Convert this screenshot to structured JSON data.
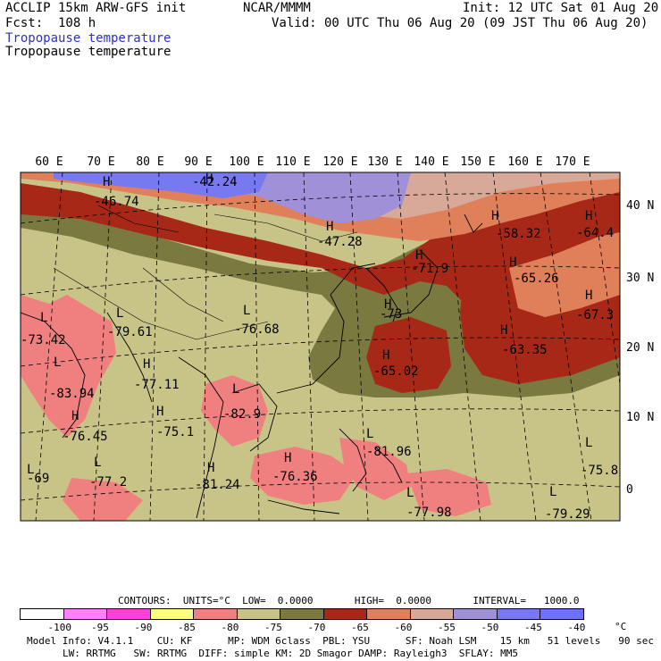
{
  "header": {
    "model": "ACCLIP 15km ARW-GFS init",
    "org": "NCAR/MMMM",
    "init": "Init: 12 UTC Sat 01 Aug 20",
    "fcst": "Fcst:  108 h",
    "valid": "Valid: 00 UTC Thu 06 Aug 20 (09 JST Thu 06 Aug 20)",
    "field_title_1": "Tropopause temperature",
    "field_title_2": "Tropopause temperature"
  },
  "colors": {
    "lt_neg100": "#ffffff",
    "c_neg100_95": "#ff80ff",
    "c_neg95_90": "#ff40d8",
    "c_neg90_85": "#ffff80",
    "c_neg85_80": "#f08080",
    "c_neg80_75": "#c8c488",
    "c_neg75_70": "#7a7a40",
    "c_neg70_65": "#a82818",
    "c_neg65_60": "#e0805a",
    "c_neg60_55": "#d8a898",
    "c_neg55_50": "#a090d8",
    "c_neg50_45": "#7878f0",
    "c_neg45_40": "#7070ff"
  },
  "map": {
    "lon_labels": [
      "60 E",
      "70 E",
      "80 E",
      "90 E",
      "100 E",
      "110 E",
      "120 E",
      "130 E",
      "140 E",
      "150 E",
      "160 E",
      "170 E"
    ],
    "lat_labels": [
      "40 N",
      "30 N",
      "20 N",
      "10 N",
      "0"
    ],
    "extrema": [
      {
        "type": "H",
        "value": "-46.74"
      },
      {
        "type": "H",
        "value": "-42.24"
      },
      {
        "type": "H",
        "value": "-47.28"
      },
      {
        "type": "H",
        "value": "-58.32"
      },
      {
        "type": "H",
        "value": "-64.4"
      },
      {
        "type": "H",
        "value": "-65.26"
      },
      {
        "type": "H",
        "value": "-71.9"
      },
      {
        "type": "H",
        "value": "-67.3"
      },
      {
        "type": "H",
        "value": "-63.35"
      },
      {
        "type": "H",
        "value": "-65.02"
      },
      {
        "type": "H",
        "value": "-73"
      },
      {
        "type": "L",
        "value": "-73.42"
      },
      {
        "type": "L",
        "value": "-79.61"
      },
      {
        "type": "L",
        "value": "-76.68"
      },
      {
        "type": "L",
        "value": "-83.94"
      },
      {
        "type": "H",
        "value": "-77.11"
      },
      {
        "type": "L",
        "value": "-82.9"
      },
      {
        "type": "H",
        "value": "-76.45"
      },
      {
        "type": "H",
        "value": "-75.1"
      },
      {
        "type": "L",
        "value": "-81.96"
      },
      {
        "type": "H",
        "value": "-76.36"
      },
      {
        "type": "L",
        "value": "-77.2"
      },
      {
        "type": "H",
        "value": "-81.24"
      },
      {
        "type": "L",
        "value": "-77.98"
      },
      {
        "type": "L",
        "value": "-79.29"
      },
      {
        "type": "L",
        "value": "-75.8"
      },
      {
        "type": "L",
        "value": "-69"
      }
    ]
  },
  "legend": {
    "contours": "CONTOURS:  UNITS=°C  LOW=  0.0000       HIGH=  0.0000       INTERVAL=   1000.0",
    "ticks": [
      "-100",
      "-95",
      "-90",
      "-85",
      "-80",
      "-75",
      "-70",
      "-65",
      "-60",
      "-55",
      "-50",
      "-45",
      "-40"
    ],
    "unit": "°C"
  },
  "footer": {
    "line1": "Model Info: V4.1.1    CU: KF      MP: WDM 6class  PBL: YSU      SF: Noah LSM    15 km   51 levels   90 sec",
    "line2": "LW: RRTMG   SW: RRTMG  DIFF: simple KM: 2D Smagor DAMP: Rayleigh3  SFLAY: MM5"
  }
}
